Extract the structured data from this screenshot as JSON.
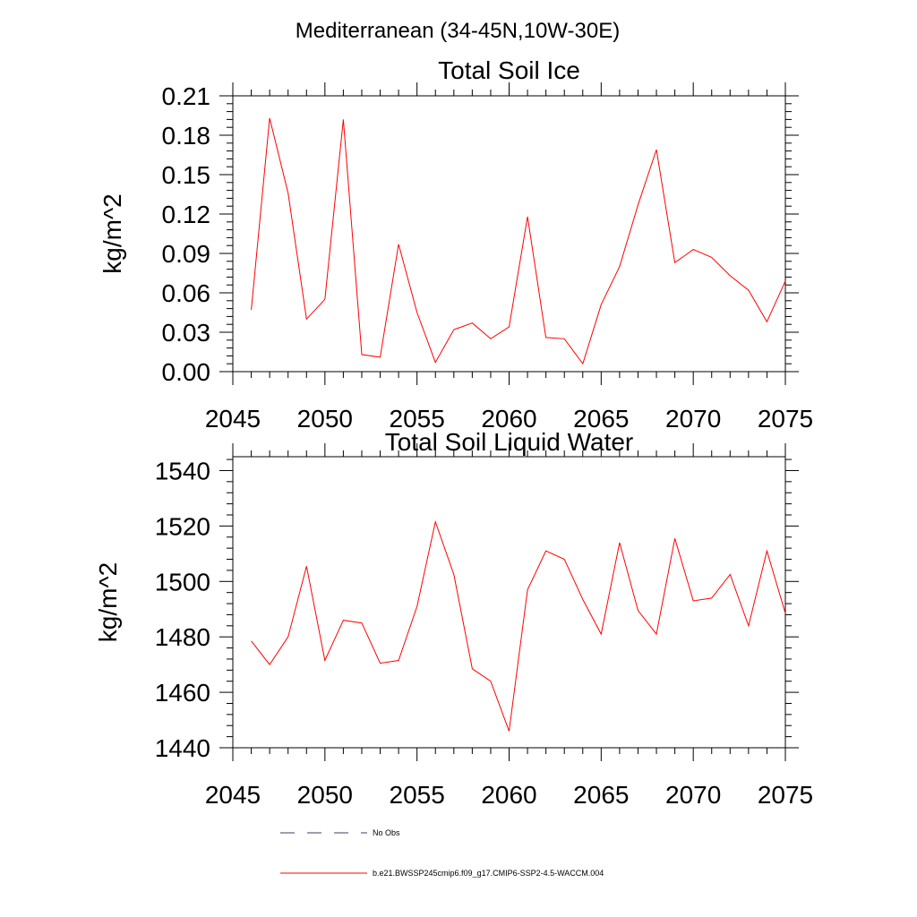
{
  "figure": {
    "title": "Mediterranean (34-45N,10W-30E)"
  },
  "chart_data": [
    {
      "type": "line",
      "title": "Total Soil Ice",
      "xlabel": "",
      "ylabel": "kg/m^2",
      "xlim": [
        2045,
        2075
      ],
      "ylim": [
        0,
        0.21
      ],
      "x_ticks": [
        2045,
        2050,
        2055,
        2060,
        2065,
        2070,
        2075
      ],
      "x_tick_labels": [
        "2045",
        "2050",
        "2055",
        "2060",
        "2065",
        "2070",
        "2075"
      ],
      "y_ticks": [
        0,
        0.03,
        0.06,
        0.09,
        0.12,
        0.15,
        0.18,
        0.21
      ],
      "y_tick_labels": [
        "0.00",
        "0.03",
        "0.06",
        "0.09",
        "0.12",
        "0.15",
        "0.18",
        "0.21"
      ],
      "grid": false,
      "series": [
        {
          "color": "#ff0000",
          "x": [
            2046,
            2047,
            2048,
            2049,
            2050,
            2051,
            2052,
            2053,
            2054,
            2055,
            2056,
            2057,
            2058,
            2059,
            2060,
            2061,
            2062,
            2063,
            2064,
            2065,
            2066,
            2067,
            2068,
            2069,
            2070,
            2071,
            2072,
            2073,
            2074,
            2075
          ],
          "values": [
            0.047,
            0.193,
            0.136,
            0.04,
            0.055,
            0.192,
            0.013,
            0.011,
            0.097,
            0.045,
            0.007,
            0.032,
            0.037,
            0.025,
            0.034,
            0.118,
            0.026,
            0.025,
            0.006,
            0.051,
            0.08,
            0.127,
            0.169,
            0.083,
            0.093,
            0.087,
            0.073,
            0.062,
            0.038,
            0.069
          ]
        }
      ]
    },
    {
      "type": "line",
      "title": "Total Soil Liquid Water",
      "xlabel": "",
      "ylabel": "kg/m^2",
      "xlim": [
        2045,
        2075
      ],
      "ylim": [
        1440,
        1545
      ],
      "x_ticks": [
        2045,
        2050,
        2055,
        2060,
        2065,
        2070,
        2075
      ],
      "x_tick_labels": [
        "2045",
        "2050",
        "2055",
        "2060",
        "2065",
        "2070",
        "2075"
      ],
      "y_ticks": [
        1440,
        1460,
        1480,
        1500,
        1520,
        1540
      ],
      "y_tick_labels": [
        "1440",
        "1460",
        "1480",
        "1500",
        "1520",
        "1540"
      ],
      "grid": false,
      "series": [
        {
          "color": "#ff0000",
          "x": [
            2046,
            2047,
            2048,
            2049,
            2050,
            2051,
            2052,
            2053,
            2054,
            2055,
            2056,
            2057,
            2058,
            2059,
            2060,
            2061,
            2062,
            2063,
            2064,
            2065,
            2066,
            2067,
            2068,
            2069,
            2070,
            2071,
            2072,
            2073,
            2074,
            2075
          ],
          "values": [
            1478.5,
            1470.0,
            1480.0,
            1505.5,
            1471.5,
            1486.0,
            1485.0,
            1470.5,
            1471.5,
            1491.0,
            1521.5,
            1502.5,
            1468.5,
            1464.0,
            1446.0,
            1497.0,
            1511.0,
            1508.0,
            1493.5,
            1481.0,
            1514.0,
            1489.5,
            1481.0,
            1515.5,
            1493.0,
            1494.0,
            1502.5,
            1484.0,
            1511.0,
            1488.5
          ]
        }
      ]
    }
  ],
  "legend": {
    "position": "bottom",
    "items": [
      {
        "label": "No Obs",
        "style": "dashed",
        "color": "#3d3d6b"
      },
      {
        "label": "b.e21.BWSSP245cmip6.f09_g17.CMIP6-SSP2-4.5-WACCM.004",
        "style": "solid",
        "color": "#ff0000"
      }
    ]
  }
}
